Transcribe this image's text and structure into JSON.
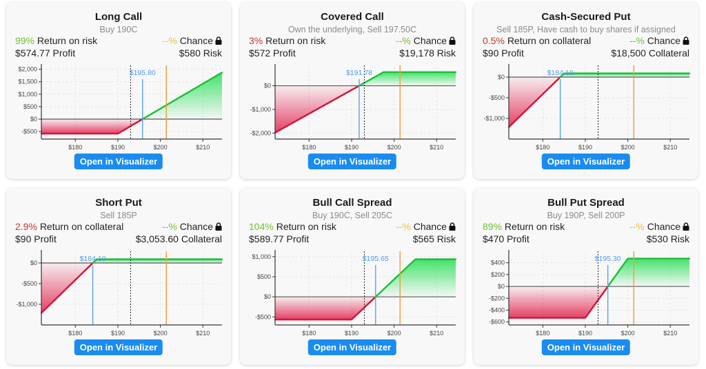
{
  "colors": {
    "green": "#6fc22f",
    "red": "#c0392b",
    "yellow": "#e8c23a",
    "button": "#1a8cf0",
    "profitLine": "#1fbf3a",
    "lossLine": "#d3163a",
    "breakeven": "#4f9ae8",
    "orange": "#f0a040"
  },
  "button_label": "Open in Visualizer",
  "cards": [
    {
      "title": "Long Call",
      "subtitle": "Buy 190C",
      "pct": "99%",
      "pct_color": "green",
      "ret_label": "Return on risk",
      "chance_pct": "--%",
      "chance_color": "yellow",
      "chance_label": "Chance",
      "profit": "$574.77 Profit",
      "risk": "$580 Risk"
    },
    {
      "title": "Covered Call",
      "subtitle": "Own the underlying, Sell 197.50C",
      "pct": "3%",
      "pct_color": "red",
      "ret_label": "Return on risk",
      "chance_pct": "--%",
      "chance_color": "green",
      "chance_label": "Chance",
      "profit": "$572 Profit",
      "risk": "$19,178 Risk"
    },
    {
      "title": "Cash-Secured Put",
      "subtitle": "Sell 185P, Have cash to buy shares if assigned",
      "pct": "0.5%",
      "pct_color": "red",
      "ret_label": "Return on collateral",
      "chance_pct": "--%",
      "chance_color": "green",
      "chance_label": "Chance",
      "profit": "$90 Profit",
      "risk": "$18,500 Collateral"
    },
    {
      "title": "Short Put",
      "subtitle": "Sell 185P",
      "pct": "2.9%",
      "pct_color": "red",
      "ret_label": "Return on collateral",
      "chance_pct": "--%",
      "chance_color": "green",
      "chance_label": "Chance",
      "profit": "$90 Profit",
      "risk": "$3,053.60 Collateral"
    },
    {
      "title": "Bull Call Spread",
      "subtitle": "Buy 190C, Sell 205C",
      "pct": "104%",
      "pct_color": "green",
      "ret_label": "Return on risk",
      "chance_pct": "--%",
      "chance_color": "yellow",
      "chance_label": "Chance",
      "profit": "$589.77 Profit",
      "risk": "$565 Risk"
    },
    {
      "title": "Bull Put Spread",
      "subtitle": "Buy 190P, Sell 200P",
      "pct": "89%",
      "pct_color": "green",
      "ret_label": "Return on risk",
      "chance_pct": "--%",
      "chance_color": "yellow",
      "chance_label": "Chance",
      "profit": "$470 Profit",
      "risk": "$530 Risk"
    }
  ],
  "chart_data": [
    {
      "type": "line",
      "title": "Long Call",
      "xlabel": "",
      "ylabel": "",
      "x_ticks": [
        "$180",
        "$190",
        "$200",
        "$210"
      ],
      "xlim": [
        172,
        214.5
      ],
      "ylim": [
        -800,
        2100
      ],
      "y_ticks": [
        -500,
        0,
        500,
        1000,
        1500,
        2000
      ],
      "y_tick_labels": [
        "-$500",
        "$0",
        "$500",
        "$1,000",
        "$1,500",
        "$2,000"
      ],
      "points": [
        [
          172,
          -580
        ],
        [
          190,
          -580
        ],
        [
          214.5,
          1870
        ]
      ],
      "breakeven": 195.8,
      "breakeven_label": "$195.80",
      "current_price": 193,
      "target": 201.4
    },
    {
      "type": "line",
      "title": "Covered Call",
      "x_ticks": [
        "$180",
        "$190",
        "$200",
        "$210"
      ],
      "xlim": [
        172,
        214.5
      ],
      "ylim": [
        -2250,
        800
      ],
      "y_ticks": [
        -2000,
        -1000,
        0
      ],
      "y_tick_labels": [
        "-$2,000",
        "-$1,000",
        "$0"
      ],
      "points": [
        [
          172,
          -1980
        ],
        [
          197.5,
          572
        ],
        [
          214.5,
          572
        ]
      ],
      "breakeven": 191.78,
      "breakeven_label": "$191.78",
      "current_price": 193,
      "target": 201.4
    },
    {
      "type": "line",
      "title": "Cash-Secured Put",
      "x_ticks": [
        "$180",
        "$190",
        "$200",
        "$210"
      ],
      "xlim": [
        172,
        214.5
      ],
      "ylim": [
        -1500,
        250
      ],
      "y_ticks": [
        -1000,
        -500,
        0
      ],
      "y_tick_labels": [
        "-$1,000",
        "-$500",
        "$0"
      ],
      "points": [
        [
          172,
          -1210
        ],
        [
          185,
          90
        ],
        [
          214.5,
          90
        ]
      ],
      "breakeven": 184.1,
      "breakeven_label": "$184.10",
      "current_price": 193,
      "target": 201.4
    },
    {
      "type": "line",
      "title": "Short Put",
      "x_ticks": [
        "$180",
        "$190",
        "$200",
        "$210"
      ],
      "xlim": [
        172,
        214.5
      ],
      "ylim": [
        -1500,
        250
      ],
      "y_ticks": [
        -1000,
        -500,
        0
      ],
      "y_tick_labels": [
        "-$1,000",
        "-$500",
        "$0"
      ],
      "points": [
        [
          172,
          -1210
        ],
        [
          185,
          90
        ],
        [
          214.5,
          90
        ]
      ],
      "breakeven": 184.1,
      "breakeven_label": "$184.10",
      "current_price": 193,
      "target": 201.4
    },
    {
      "type": "line",
      "title": "Bull Call Spread",
      "x_ticks": [
        "$180",
        "$190",
        "$200",
        "$210"
      ],
      "xlim": [
        172,
        214.5
      ],
      "ylim": [
        -700,
        1100
      ],
      "y_ticks": [
        -500,
        0,
        500,
        1000
      ],
      "y_tick_labels": [
        "-$500",
        "$0",
        "$500",
        "$1,000"
      ],
      "points": [
        [
          172,
          -565
        ],
        [
          190,
          -565
        ],
        [
          205,
          935
        ],
        [
          214.5,
          935
        ]
      ],
      "breakeven": 195.65,
      "breakeven_label": "$195.65",
      "current_price": 193,
      "target": 201.4
    },
    {
      "type": "line",
      "title": "Bull Put Spread",
      "x_ticks": [
        "$180",
        "$190",
        "$200",
        "$210"
      ],
      "xlim": [
        172,
        214.5
      ],
      "ylim": [
        -650,
        570
      ],
      "y_ticks": [
        -600,
        -400,
        -200,
        0,
        200,
        400
      ],
      "y_tick_labels": [
        "-$600",
        "-$400",
        "-$200",
        "$0",
        "$200",
        "$400"
      ],
      "points": [
        [
          172,
          -530
        ],
        [
          190,
          -530
        ],
        [
          200,
          470
        ],
        [
          214.5,
          470
        ]
      ],
      "breakeven": 195.3,
      "breakeven_label": "$195.30",
      "current_price": 193,
      "target": 201.4
    }
  ]
}
